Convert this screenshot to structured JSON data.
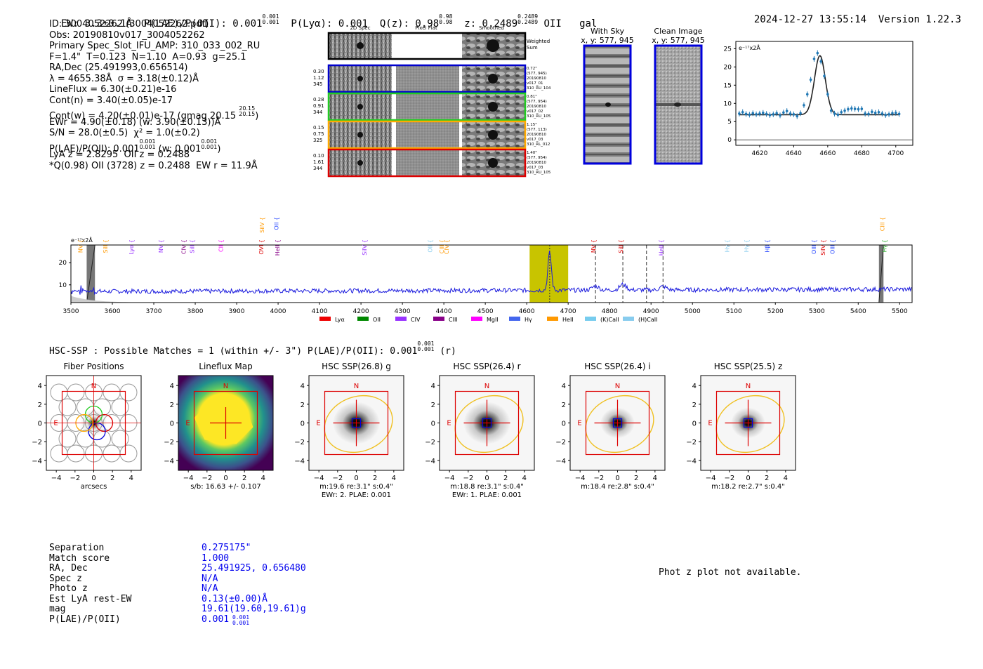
{
  "header": {
    "ew": "EW: 3.3±0.1Å",
    "plae_label": "P(LAE)/P(OII): 0.001",
    "plae_sup": [
      "0.001",
      "0.001"
    ],
    "plya": "P(Lyα): 0.001",
    "qz": "Q(z): 0.98",
    "qz_sup": [
      "0.98",
      "0.98"
    ],
    "z": "z: 0.2489",
    "z_sup": [
      "0.2489",
      "0.2489"
    ],
    "line": "OII",
    "type": "gal",
    "timestamp": "2024-12-27 13:55:14",
    "version": "Version 1.22.3"
  },
  "props": {
    "id": "ID: 3004052262 (3004052262.pdf)",
    "obs": "Obs: 20190810v017_3004052262",
    "slot": "Primary Spec_Slot_IFU_AMP: 310_033_002_RU",
    "fit": "F=1.4\"  T=0.123  N=1.10  A=0.93  g=25.1",
    "radec": "RA,Dec (25.491993,0.656514)",
    "lambda": "λ = 4655.38Å  σ = 3.18(±0.12)Å",
    "lineflux": "LineFlux = 6.30(±0.21)e-16",
    "contn": "Cont(n) = 3.40(±0.05)e-17",
    "contw": "Cont(w) = 4.20(±0.01)e-17 (gmag 20.15",
    "contw_sup": [
      "20.15",
      "20.15"
    ],
    "ewr": "EWr = 4.90(±0.18) (w: 3.90(±0.13))Å",
    "sn": "S/N = 28.0(±0.5)  χ² = 1.0(±0.2)",
    "plae": "P(LAE)/P(OII): 0.001",
    "plae_sup": [
      "0.001",
      "0.001"
    ],
    "plae_w": "(w: 0.001",
    "plae_w_sup": [
      "0.001",
      "0.001"
    ],
    "lya": "LyA z = 2.8295  OII z = 0.2488",
    "q": "*Q(0.98) OII (3728) z = 0.2488  EW r = 11.9Å"
  },
  "cutouts": {
    "col_titles": [
      "2D Spec",
      "Pixel Flat",
      "Smoothed"
    ],
    "weighted_sum": "Weighted Sum",
    "rows": [
      {
        "color": "#0000cc",
        "left": [
          "0.30",
          "1.12",
          "345"
        ],
        "right": [
          "0.72\"",
          "(577, 945)",
          "20190810",
          "v017_01",
          "310_RU_104"
        ]
      },
      {
        "color": "#22cc22",
        "left": [
          "0.28",
          "0.91",
          "344"
        ],
        "right": [
          "0.81\"",
          "(577, 954)",
          "20190810",
          "v017_02",
          "310_RU_105"
        ]
      },
      {
        "color": "#ffaa00",
        "left": [
          "0.15",
          "0.75",
          "325"
        ],
        "right": [
          "1.15\"",
          "(577, 113)",
          "20190810",
          "v017_03",
          "310_RL_012"
        ]
      },
      {
        "color": "#dd0000",
        "left": [
          "0.10",
          "1.61",
          "344"
        ],
        "right": [
          "1.40\"",
          "(577, 954)",
          "20190810",
          "v017_03",
          "310_RU_105"
        ]
      }
    ]
  },
  "sky": {
    "with_sky_title": "With Sky",
    "with_sky_xy": "x, y: 577, 945",
    "clean_title": "Clean Image",
    "clean_xy": "x, y: 577, 945"
  },
  "zoom_chart": {
    "type": "scatter",
    "ylabel": "e⁻¹⁷x2Å",
    "x_ticks": [
      "4620",
      "4640",
      "4660",
      "4680",
      "4700"
    ],
    "y_ticks": [
      "0",
      "5",
      "10",
      "15",
      "20",
      "25"
    ],
    "xlim": [
      4606,
      4710
    ],
    "ylim": [
      -1.5,
      27
    ],
    "points": [
      [
        4608,
        7.2
      ],
      [
        4610,
        7.6
      ],
      [
        4612,
        7.1
      ],
      [
        4614,
        6.9
      ],
      [
        4616,
        7.3
      ],
      [
        4618,
        7.0
      ],
      [
        4620,
        7.2
      ],
      [
        4622,
        7.4
      ],
      [
        4624,
        7.1
      ],
      [
        4626,
        6.8
      ],
      [
        4628,
        7.0
      ],
      [
        4630,
        7.3
      ],
      [
        4632,
        6.7
      ],
      [
        4634,
        7.5
      ],
      [
        4636,
        7.9
      ],
      [
        4638,
        7.2
      ],
      [
        4640,
        7.0
      ],
      [
        4642,
        6.5
      ],
      [
        4644,
        7.3
      ],
      [
        4646,
        9.5
      ],
      [
        4648,
        12.5
      ],
      [
        4650,
        16.5
      ],
      [
        4652,
        22.2
      ],
      [
        4654,
        23.8
      ],
      [
        4656,
        21.5
      ],
      [
        4658,
        17.5
      ],
      [
        4660,
        12.5
      ],
      [
        4662,
        8.0
      ],
      [
        4664,
        7.2
      ],
      [
        4666,
        6.9
      ],
      [
        4668,
        7.6
      ],
      [
        4670,
        8.0
      ],
      [
        4672,
        8.4
      ],
      [
        4674,
        8.6
      ],
      [
        4676,
        8.5
      ],
      [
        4678,
        8.4
      ],
      [
        4680,
        8.5
      ],
      [
        4682,
        7.2
      ],
      [
        4684,
        7.1
      ],
      [
        4686,
        7.7
      ],
      [
        4688,
        7.4
      ],
      [
        4690,
        7.6
      ],
      [
        4692,
        7.2
      ],
      [
        4694,
        6.8
      ],
      [
        4696,
        7.0
      ],
      [
        4698,
        7.3
      ],
      [
        4700,
        7.4
      ],
      [
        4702,
        7.1
      ]
    ],
    "fit": {
      "center": 4655.4,
      "sigma": 3.18,
      "amp": 16.2,
      "cont": 6.9
    }
  },
  "chart_data": {
    "type": "line",
    "title": "",
    "xlabel": "",
    "ylabel": "e⁻¹⁷x2Å",
    "xlim": [
      3500,
      5530
    ],
    "ylim": [
      2,
      28
    ],
    "x_ticks": [
      "3500",
      "3600",
      "3700",
      "3800",
      "3900",
      "4000",
      "4100",
      "4200",
      "4300",
      "4400",
      "4500",
      "4600",
      "4700",
      "4800",
      "4900",
      "5000",
      "5100",
      "5200",
      "5300",
      "5400",
      "5500"
    ],
    "y_ticks": [
      "10",
      "20"
    ],
    "highlight_range": [
      4607,
      4700
    ],
    "peak_wavelength": 4655.38,
    "dashed_lines": [
      4766,
      4832,
      4889,
      4929
    ],
    "masked_ranges": [
      [
        3538,
        3558
      ],
      [
        5450,
        5461
      ]
    ],
    "line_labels": [
      {
        "w": 3528,
        "t": "NV",
        "c": "#ff9900",
        "row": 1
      },
      {
        "w": 3588,
        "t": "SiII",
        "c": "#ff9900",
        "row": 1
      },
      {
        "w": 3651,
        "t": "Lyα",
        "c": "#9933ff",
        "row": 1
      },
      {
        "w": 3722,
        "t": "NV",
        "c": "#9933ff",
        "row": 1
      },
      {
        "w": 3777,
        "t": "CIV",
        "c": "#880088",
        "row": 1
      },
      {
        "w": 3797,
        "t": "SiII",
        "c": "#9933ff",
        "row": 1
      },
      {
        "w": 3867,
        "t": "CII",
        "c": "#ff00ff",
        "row": 1
      },
      {
        "w": 3966,
        "t": "SiIV",
        "c": "#ff9900",
        "row": 0
      },
      {
        "w": 3964,
        "t": "OVI",
        "c": "#dd0000",
        "row": 1
      },
      {
        "w": 4001,
        "t": "OII",
        "c": "#2244ff",
        "row": 0
      },
      {
        "w": 4003,
        "t": "HeII",
        "c": "#880088",
        "row": 1
      },
      {
        "w": 4213,
        "t": "SiIV",
        "c": "#9933ff",
        "row": 1
      },
      {
        "w": 4372,
        "t": "OII",
        "c": "#88ccee",
        "row": 1
      },
      {
        "w": 4400,
        "t": "CIII",
        "c": "#ff9900",
        "row": 1
      },
      {
        "w": 4412,
        "t": "CIV",
        "c": "#ff9900",
        "row": 1
      },
      {
        "w": 4766,
        "t": "NV",
        "c": "#dd0000",
        "row": 1
      },
      {
        "w": 4832,
        "t": "SiII",
        "c": "#dd0000",
        "row": 1
      },
      {
        "w": 4929,
        "t": "HeII",
        "c": "#9933ff",
        "row": 1
      },
      {
        "w": 5089,
        "t": "Hγ",
        "c": "#88ccee",
        "row": 2
      },
      {
        "w": 5135,
        "t": "Hγ",
        "c": "#88ccee",
        "row": 2
      },
      {
        "w": 5185,
        "t": "Hβ",
        "c": "#2244ff",
        "row": 2
      },
      {
        "w": 5298,
        "t": "OIII",
        "c": "#2244ff",
        "row": 2
      },
      {
        "w": 5320,
        "t": "SiIV",
        "c": "#dd0000",
        "row": 2
      },
      {
        "w": 5343,
        "t": "OIII",
        "c": "#2244ff",
        "row": 2
      },
      {
        "w": 5463,
        "t": "CIII",
        "c": "#ff9900",
        "row": 0
      },
      {
        "w": 5468,
        "t": "Hγ",
        "c": "#22aa22",
        "row": 2
      }
    ],
    "legend": [
      {
        "t": "Lyα",
        "c": "#ee0000"
      },
      {
        "t": "OII",
        "c": "#008800"
      },
      {
        "t": "CIV",
        "c": "#9933ff"
      },
      {
        "t": "CIII",
        "c": "#880088"
      },
      {
        "t": "MgII",
        "c": "#ff00ff"
      },
      {
        "t": "Hγ",
        "c": "#4466ee"
      },
      {
        "t": "HeII",
        "c": "#ff9900"
      },
      {
        "t": "(K)CaII",
        "c": "#77ccee"
      },
      {
        "t": "(H)CaII",
        "c": "#88ccee"
      }
    ]
  },
  "hsc": {
    "line": "HSC-SSP : Possible Matches = 1 (within +/- 3\")  P(LAE)/P(OII): 0.001",
    "line_sup": [
      "0.001",
      "0.001"
    ],
    "line_tail": "(r)",
    "axis_ticks": [
      "4",
      "2",
      "0",
      "−2",
      "−4"
    ],
    "x_ticks": [
      "−4",
      "−2",
      "0",
      "2",
      "4"
    ],
    "north": "N",
    "east": "E",
    "panels": [
      {
        "title": "Fiber Positions",
        "caption1": "arcsecs",
        "caption2": ""
      },
      {
        "title": "Lineflux Map",
        "caption1": "s/b: 16.63 +/- 0.107",
        "caption2": ""
      },
      {
        "title": "HSC SSP(26.8) g",
        "caption1": "m:19.6  re:3.1\"  s:0.4\"",
        "caption2": "EWr: 2. PLAE: 0.001"
      },
      {
        "title": "HSC SSP(26.4) r",
        "caption1": "m:18.8  re:3.1\"  s:0.4\"",
        "caption2": "EWr: 1. PLAE: 0.001"
      },
      {
        "title": "HSC SSP(26.4) i",
        "caption1": "m:18.4  re:2.8\"  s:0.4\"",
        "caption2": ""
      },
      {
        "title": "HSC SSP(25.5) z",
        "caption1": "m:18.2  re:2.7\"  s:0.4\"",
        "caption2": ""
      }
    ]
  },
  "match": {
    "rows": [
      {
        "k": "Separation",
        "v": "0.275175\""
      },
      {
        "k": "Match score",
        "v": "1.000"
      },
      {
        "k": "RA, Dec",
        "v": "25.491925, 0.656480"
      },
      {
        "k": "Spec z",
        "v": "N/A"
      },
      {
        "k": "Photo z",
        "v": "N/A"
      },
      {
        "k": "Est LyA rest-EW",
        "v": "0.13(±0.00)Å"
      },
      {
        "k": "mag",
        "v": "19.61(19.60,19.61)g"
      },
      {
        "k": "P(LAE)/P(OII)",
        "v": "0.001"
      }
    ],
    "plae_sup": [
      "0.001",
      "0.001"
    ],
    "photz_msg": "Phot z plot not available."
  }
}
